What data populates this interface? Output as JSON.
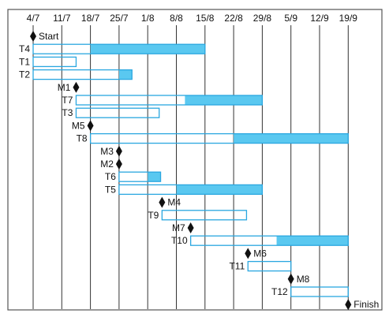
{
  "chart_data": {
    "type": "gantt",
    "dates": [
      "4/7",
      "11/7",
      "18/7",
      "25/7",
      "1/8",
      "8/8",
      "15/8",
      "22/8",
      "29/8",
      "5/9",
      "12/9",
      "19/9"
    ],
    "date_step_days": 7,
    "grid": true,
    "colors": {
      "bar_outline": "#2aa7e0",
      "bar_fill": "#5ac8f0",
      "milestone": "#111111",
      "gridline": "#333333",
      "frame": "#555555"
    },
    "rows": [
      {
        "label": "Start",
        "kind": "milestone",
        "at": 0
      },
      {
        "label": "T4",
        "kind": "task",
        "start": 0,
        "planned_end": 2,
        "end": 6
      },
      {
        "label": "T1",
        "kind": "task",
        "start": 0,
        "planned_end": 1.5,
        "end": 1.5
      },
      {
        "label": "T2",
        "kind": "task",
        "start": 0,
        "planned_end": 3,
        "end": 3.45
      },
      {
        "label": "M1",
        "kind": "milestone",
        "at": 1.5
      },
      {
        "label": "T7",
        "kind": "task",
        "start": 1.5,
        "planned_end": 5.3,
        "end": 8
      },
      {
        "label": "T3",
        "kind": "task",
        "start": 1.5,
        "planned_end": 4.4,
        "end": 4.4
      },
      {
        "label": "M5",
        "kind": "milestone",
        "at": 2
      },
      {
        "label": "T8",
        "kind": "task",
        "start": 2,
        "planned_end": 7,
        "end": 11
      },
      {
        "label": "M3",
        "kind": "milestone",
        "at": 3
      },
      {
        "label": "M2",
        "kind": "milestone",
        "at": 3
      },
      {
        "label": "T6",
        "kind": "task",
        "start": 3,
        "planned_end": 4,
        "end": 4.45
      },
      {
        "label": "T5",
        "kind": "task",
        "start": 3,
        "planned_end": 5,
        "end": 8
      },
      {
        "label": "M4",
        "kind": "milestone",
        "at": 4.5
      },
      {
        "label": "T9",
        "kind": "task",
        "start": 4.5,
        "planned_end": 7.45,
        "end": 7.45
      },
      {
        "label": "M7",
        "kind": "milestone",
        "at": 5.5
      },
      {
        "label": "T10",
        "kind": "task",
        "start": 5.5,
        "planned_end": 8.5,
        "end": 11
      },
      {
        "label": "M6",
        "kind": "milestone",
        "at": 7.5
      },
      {
        "label": "T11",
        "kind": "task",
        "start": 7.5,
        "planned_end": 9,
        "end": 9
      },
      {
        "label": "M8",
        "kind": "milestone",
        "at": 9
      },
      {
        "label": "T12",
        "kind": "task",
        "start": 9,
        "planned_end": 11,
        "end": 11
      },
      {
        "label": "Finish",
        "kind": "milestone",
        "at": 11
      }
    ]
  }
}
